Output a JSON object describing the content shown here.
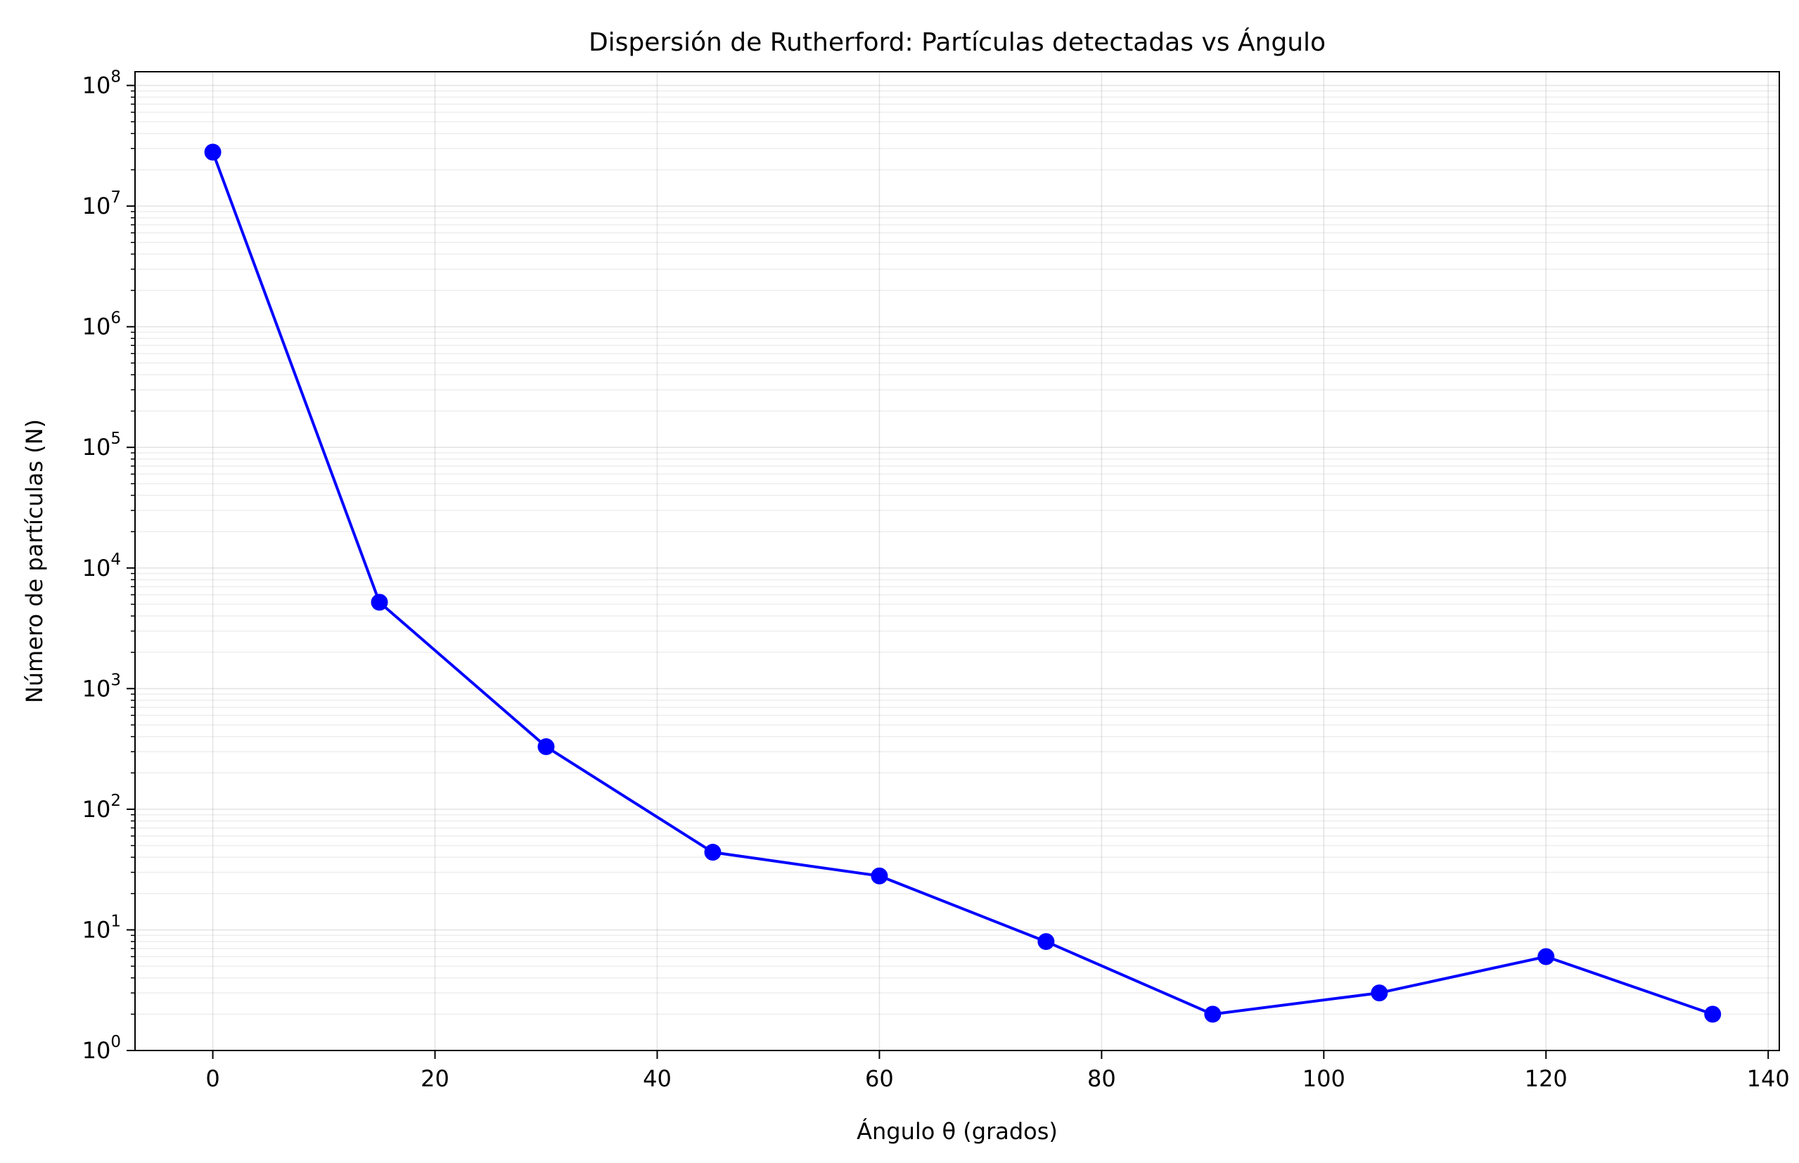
{
  "chart_data": {
    "type": "line",
    "title": "Dispersión de Rutherford: Partículas detectadas vs Ángulo",
    "xlabel": "Ángulo θ (grados)",
    "ylabel": "Número de partículas (N)",
    "xlim": [
      -7,
      141
    ],
    "ylim": [
      1,
      130000000
    ],
    "yscale": "log",
    "grid": true,
    "grid_minor": true,
    "x_ticks": [
      0,
      20,
      40,
      60,
      80,
      100,
      120,
      140
    ],
    "x_tick_labels": [
      "0",
      "20",
      "40",
      "60",
      "80",
      "100",
      "120",
      "140"
    ],
    "y_ticks": [
      {
        "value": 1,
        "base": "10",
        "exp": "0"
      },
      {
        "value": 10,
        "base": "10",
        "exp": "1"
      },
      {
        "value": 100,
        "base": "10",
        "exp": "2"
      },
      {
        "value": 1000,
        "base": "10",
        "exp": "3"
      },
      {
        "value": 10000,
        "base": "10",
        "exp": "4"
      },
      {
        "value": 100000,
        "base": "10",
        "exp": "5"
      },
      {
        "value": 1000000,
        "base": "10",
        "exp": "6"
      },
      {
        "value": 10000000,
        "base": "10",
        "exp": "7"
      },
      {
        "value": 100000000,
        "base": "10",
        "exp": "8"
      }
    ],
    "series": [
      {
        "color": "#0000ff",
        "marker": "circle",
        "x": [
          0,
          15,
          30,
          45,
          60,
          75,
          90,
          105,
          120,
          135
        ],
        "values": [
          28000000,
          5200,
          330,
          44,
          28,
          8,
          2,
          3,
          6,
          2
        ]
      }
    ]
  }
}
